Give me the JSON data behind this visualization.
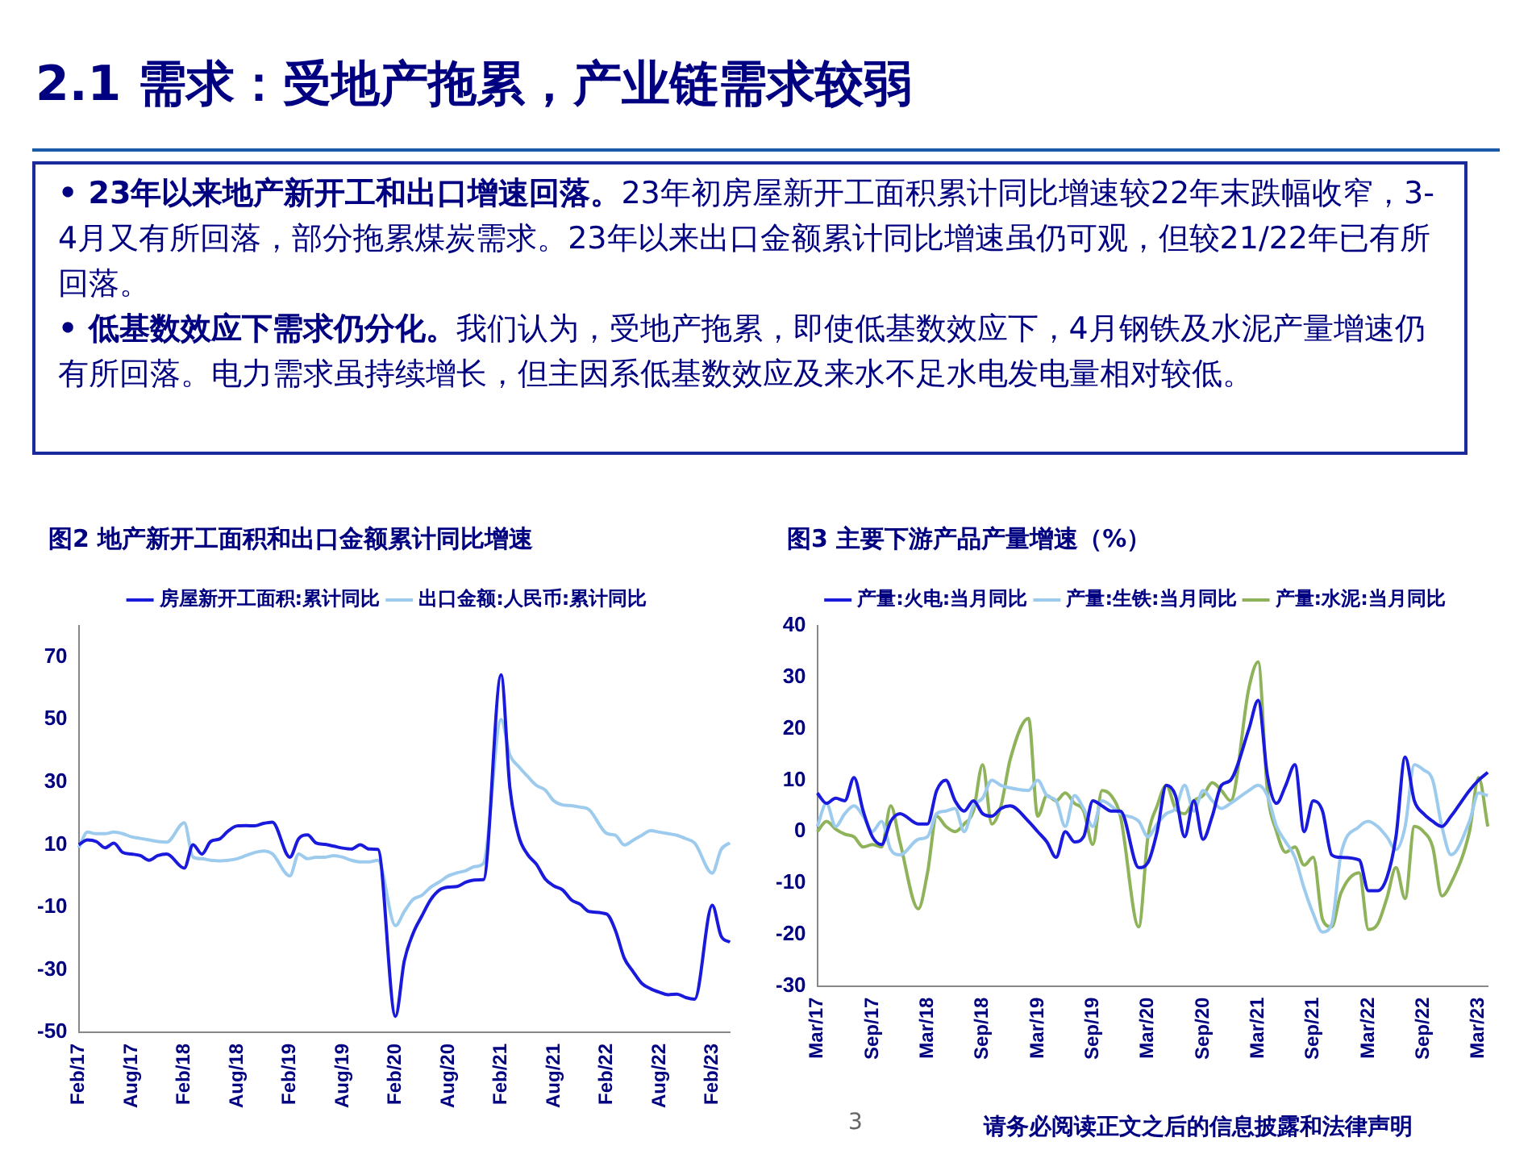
{
  "chart_data": [
    {
      "type": "other",
      "title": "2.1 需求：受地产拖累，产业链需求较弱",
      "annotations": [
        "• 23年以来地产新开工和出口增速回落。23年初房屋新开工面积累计同比增速较22年末跌幅收窄，3-4月又有所回落，部分拖累煤炭需求。23年以来出口金额累计同比增速虽仍可观，但较21/22年已有所回落。",
        "• 低基数效应下需求仍分化。我们认为，受地产拖累，即使低基数效应下，4月钢铁及水泥产量增速仍有所回落。电力需求虽持续增长，但主因系低基数效应及来水不足水电发电量相对较低。",
        "3",
        "请务必阅读正文之后的信息披露和法律声明"
      ]
    },
    {
      "type": "line",
      "title": "图2 地产新开工面积和出口金额累计同比增速",
      "legend": "top",
      "ylim": [
        -50,
        80
      ],
      "yticks": [
        -50,
        -30,
        -10,
        10,
        30,
        50,
        70
      ],
      "categories": [
        "Feb/17",
        null,
        null,
        null,
        null,
        null,
        "Aug/17",
        null,
        null,
        null,
        null,
        null,
        "Feb/18",
        null,
        null,
        null,
        null,
        null,
        "Aug/18",
        null,
        null,
        null,
        null,
        null,
        "Feb/19",
        null,
        null,
        null,
        null,
        null,
        "Aug/19",
        null,
        null,
        null,
        null,
        null,
        "Feb/20",
        null,
        null,
        null,
        null,
        null,
        "Aug/20",
        null,
        null,
        null,
        null,
        null,
        "Feb/21",
        null,
        null,
        null,
        null,
        null,
        "Aug/21",
        null,
        null,
        null,
        null,
        null,
        "Feb/22",
        null,
        null,
        null,
        null,
        null,
        "Aug/22",
        null,
        null,
        null,
        null,
        null,
        "Feb/23",
        null,
        null
      ],
      "series": [
        {
          "name": "房屋新开工面积:累计同比",
          "color": "#1a1adc",
          "values": [
            10,
            11.5,
            11,
            9,
            10.5,
            7.5,
            7,
            6.5,
            5,
            6.5,
            7,
            null,
            2.5,
            10,
            7,
            11,
            11.8,
            14.4,
            16,
            16.1,
            16,
            16.8,
            17.2,
            null,
            6,
            11.9,
            13.1,
            10.5,
            10.1,
            9.5,
            8.9,
            8.6,
            10,
            8.6,
            8.5,
            null,
            -44.9,
            -27.2,
            -18.4,
            -12.8,
            -7.6,
            -4.5,
            -3.6,
            -3.4,
            -2,
            -1.3,
            -1.2,
            null,
            64.3,
            28.2,
            12.8,
            6.9,
            3.8,
            -0.9,
            -3.2,
            -4.5,
            -7.7,
            -9.1,
            -11.4,
            null,
            -12.2,
            -17.5,
            -26.3,
            -30.6,
            -34.4,
            -36.1,
            -37.2,
            -38,
            -37.8,
            -38.9,
            -39.4,
            null,
            -9.4,
            -19.2,
            -21.2
          ]
        },
        {
          "name": "出口金额:人民币:累计同比",
          "color": "#9dcbee",
          "values": [
            9,
            14,
            13.5,
            13.5,
            14,
            13.5,
            12.5,
            12,
            11.5,
            11,
            10.8,
            null,
            17,
            6,
            5.5,
            5,
            4.8,
            5,
            5.5,
            6.5,
            7.5,
            8,
            7.1,
            null,
            0,
            7,
            5.5,
            6,
            6,
            6.5,
            6,
            5,
            4.5,
            4.5,
            5,
            null,
            -15.9,
            -11.4,
            -7.5,
            -6.2,
            -3.6,
            -1.9,
            0,
            1,
            1.7,
            3,
            4,
            null,
            50,
            38.7,
            35,
            31.9,
            29,
            27.5,
            24,
            22.7,
            22.5,
            22,
            21.2,
            null,
            13.6,
            13,
            9.9,
            11.4,
            13,
            14.5,
            14,
            13.5,
            13,
            11.9,
            10.5,
            null,
            0.9,
            8.4,
            10.6
          ]
        }
      ]
    },
    {
      "type": "line",
      "title": "图3 主要下游产品产量增速（%）",
      "legend": "top",
      "ylim": [
        -30,
        40
      ],
      "yticks": [
        -30,
        -20,
        -10,
        0,
        10,
        20,
        30,
        40
      ],
      "categories": [
        "Mar/17",
        null,
        null,
        null,
        null,
        null,
        "Sep/17",
        null,
        null,
        null,
        null,
        null,
        "Mar/18",
        null,
        null,
        null,
        null,
        null,
        "Sep/18",
        null,
        null,
        null,
        null,
        null,
        "Mar/19",
        null,
        null,
        null,
        null,
        null,
        "Sep/19",
        null,
        null,
        null,
        null,
        null,
        "Mar/20",
        null,
        null,
        null,
        null,
        null,
        "Sep/20",
        null,
        null,
        null,
        null,
        null,
        "Mar/21",
        null,
        null,
        null,
        null,
        null,
        "Sep/21",
        null,
        null,
        null,
        null,
        null,
        "Mar/22",
        null,
        null,
        null,
        null,
        null,
        "Sep/22",
        null,
        null,
        null,
        null,
        null,
        "Mar/23",
        null
      ],
      "series": [
        {
          "name": "产量:火电:当月同比",
          "color": "#1a1adc",
          "values": [
            7.5,
            5.5,
            6.5,
            6,
            10.5,
            4,
            -1,
            -2.5,
            2,
            3.5,
            null,
            1.5,
            1.5,
            8,
            10,
            6,
            4,
            6,
            3.5,
            3,
            4.5,
            5,
            null,
            2,
            0,
            -2,
            -5,
            0,
            -2,
            -1,
            6,
            5,
            4,
            4,
            null,
            -7,
            -6,
            0,
            9,
            7,
            -1,
            6,
            -1.5,
            3,
            9,
            10,
            null,
            20,
            25.5,
            11,
            5.5,
            9,
            13,
            0,
            6,
            4,
            -4.5,
            -5,
            null,
            -5.5,
            -11.5,
            -11.5,
            -9,
            -1,
            14.5,
            6,
            3.5,
            2,
            1,
            3,
            null,
            8,
            10,
            11.5
          ]
        },
        {
          "name": "产量:生铁:当月同比",
          "color": "#9dcbee",
          "values": [
            1,
            5.5,
            1,
            3.5,
            5,
            3,
            0,
            2,
            -3.5,
            -4.5,
            null,
            -1.5,
            -1,
            3.5,
            4,
            4.5,
            0,
            5,
            6.5,
            10,
            9,
            8.5,
            null,
            8,
            10,
            7,
            6,
            1,
            7,
            4.5,
            1,
            6,
            5,
            3.5,
            null,
            2,
            -1,
            1.5,
            3.5,
            4.5,
            9,
            4,
            8,
            6,
            4.5,
            5.5,
            null,
            8,
            9,
            7,
            1,
            -2,
            -5,
            -11,
            -16,
            -19.5,
            -18,
            -4.5,
            null,
            1,
            2,
            1,
            -1,
            -3.5,
            1,
            13,
            12,
            10,
            1,
            -4.5,
            null,
            2,
            7.5,
            7
          ]
        },
        {
          "name": "产量:水泥:当月同比",
          "color": "#8fb35a",
          "values": [
            0,
            2,
            0.5,
            -0.5,
            -1,
            -3,
            -2.5,
            -3,
            5,
            -2,
            null,
            -15,
            -8,
            3,
            1,
            0,
            1.5,
            4,
            13,
            1.5,
            5,
            14,
            null,
            22,
            3,
            7,
            6,
            7.5,
            5.5,
            4,
            -2.5,
            8,
            7,
            3,
            null,
            -18.5,
            -1,
            5,
            9,
            4.5,
            3.5,
            6,
            7,
            9.5,
            8,
            6,
            null,
            28,
            33,
            8,
            0,
            -4,
            -3,
            -6.5,
            -5,
            -17,
            -18.5,
            -12,
            null,
            -8,
            -19,
            -18,
            -13,
            -7,
            -13,
            1,
            0,
            -3,
            -12.5,
            -10,
            null,
            0,
            10.5,
            1
          ]
        }
      ]
    }
  ]
}
